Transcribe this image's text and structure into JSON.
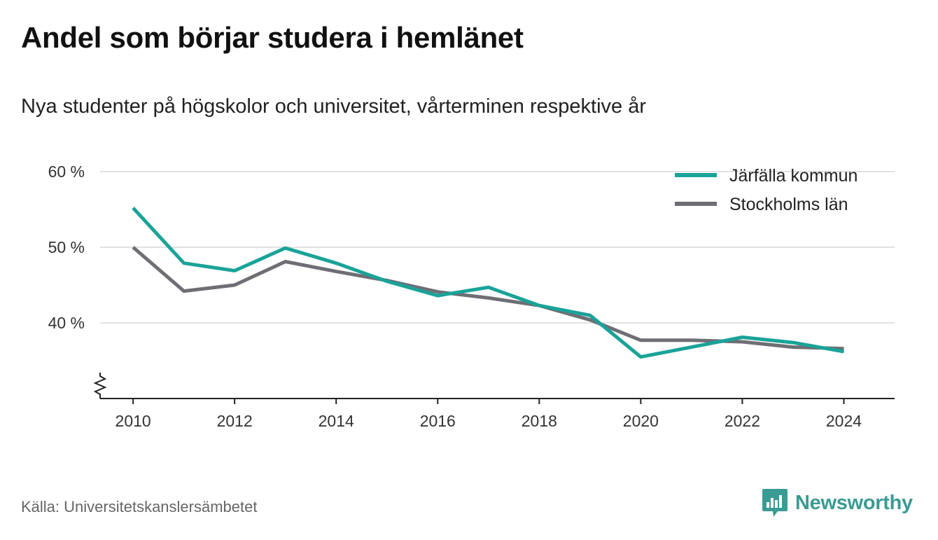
{
  "header": {
    "title": "Andel som börjar studera i hemlänet",
    "subtitle": "Nya studenter på högskolor och universitet, vårterminen respektive år"
  },
  "footer": {
    "source": "Källa: Universitetskanslersämbetet",
    "brand": "Newsworthy",
    "brand_icon": "bar-chart-speech-bubble-icon"
  },
  "colors": {
    "jarfalla": "#1aa398",
    "stockholm": "#6e6e75",
    "grid": "#d9d9d9",
    "axis": "#222222",
    "brand": "#3a9b94"
  },
  "chart_data": {
    "type": "line",
    "x": [
      2010,
      2011,
      2012,
      2013,
      2014,
      2015,
      2016,
      2017,
      2018,
      2019,
      2020,
      2021,
      2022,
      2023,
      2024
    ],
    "series": [
      {
        "name": "Järfälla kommun",
        "values": [
          55.2,
          47.9,
          46.9,
          49.9,
          47.9,
          45.5,
          43.6,
          44.7,
          42.3,
          41.0,
          35.5,
          36.8,
          38.1,
          37.4,
          36.2
        ]
      },
      {
        "name": "Stockholms län",
        "values": [
          50.0,
          44.2,
          45.0,
          48.1,
          46.8,
          45.6,
          44.1,
          43.3,
          42.3,
          40.4,
          37.7,
          37.7,
          37.5,
          36.8,
          36.6
        ]
      }
    ],
    "xticks": [
      "2010",
      "2012",
      "2014",
      "2016",
      "2018",
      "2020",
      "2022",
      "2024"
    ],
    "yticks": [
      "40 %",
      "50 %",
      "60 %"
    ],
    "ytick_values": [
      40,
      50,
      60
    ],
    "xlim": [
      2009.35,
      2025.0
    ],
    "ylim": [
      30,
      60
    ],
    "y_axis_break": true,
    "grid": true,
    "legend": "top-right"
  }
}
